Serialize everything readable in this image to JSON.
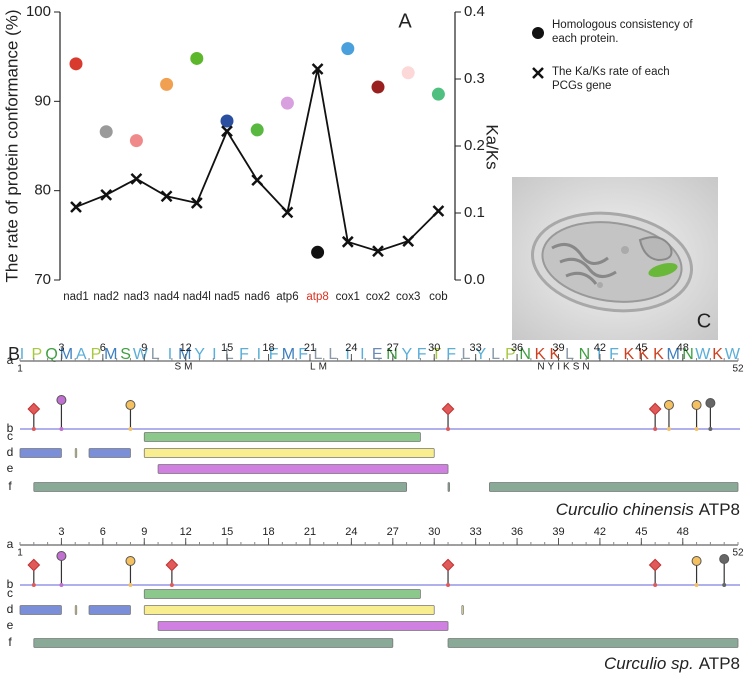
{
  "chart_data": {
    "type": "line",
    "panel_label": "A",
    "ylabel": "The rate of protein conformance (%)",
    "y2label": "Ka/Ks",
    "categories": [
      "nad1",
      "nad2",
      "nad3",
      "nad4",
      "nad4l",
      "nad5",
      "nad6",
      "atp6",
      "atp8",
      "cox1",
      "cox2",
      "cox3",
      "cob"
    ],
    "category_colors": [
      "#222",
      "#222",
      "#222",
      "#222",
      "#222",
      "#222",
      "#222",
      "#222",
      "#e03020",
      "#222",
      "#222",
      "#222",
      "#222"
    ],
    "ylim": [
      70,
      100
    ],
    "yticks": [
      70,
      80,
      90,
      100
    ],
    "y2lim": [
      0,
      0.4
    ],
    "y2ticks": [
      {
        "value": 0,
        "label": "0.0"
      },
      0.1,
      0.2,
      0.3,
      0.4
    ],
    "series": [
      {
        "name": "Homologous consistency of each protein.",
        "type": "scatter",
        "color": "#111",
        "point_colors": [
          "#d93a2e",
          "#9a9a9a",
          "#f08a8a",
          "#f0a050",
          "#5cb82a",
          "#2a4fa0",
          "#58b840",
          "#d9a0e0",
          "#111111",
          "#4aa0dc",
          "#9a2020",
          "#fcd8d8",
          "#50c080"
        ],
        "values": [
          94.2,
          86.6,
          85.6,
          91.9,
          94.8,
          87.8,
          86.8,
          89.8,
          73.1,
          95.9,
          91.6,
          93.2,
          90.8
        ]
      },
      {
        "name": "The Ka/Ks rate of each PCGs gene",
        "type": "line",
        "axis": "y2",
        "color": "#111",
        "marker": "x",
        "values": [
          0.109,
          0.127,
          0.151,
          0.125,
          0.115,
          0.222,
          0.149,
          0.101,
          0.315,
          0.057,
          0.043,
          0.058,
          0.103
        ]
      }
    ]
  },
  "panel_b": {
    "label": "B",
    "sequence": "IPQMAPMSWLIMYILFIFMFLLIIENYFTFLYLPNKKLNIFKKKMNWKW",
    "sequence_lower": [
      "SM",
      "LM",
      "NYIKSN"
    ],
    "residue_colors": {
      "I": "#5aaed8",
      "L": "#8a9aa8",
      "M": "#3d7fc0",
      "F": "#5aaed8",
      "W": "#5aaed8",
      "A": "#5aaed8",
      "P": "#a8c840",
      "Q": "#3da040",
      "S": "#3da040",
      "T": "#a8c840",
      "N": "#3da040",
      "Y": "#5aaed8",
      "E": "#6a8ab8",
      "K": "#d04020"
    },
    "xlim": [
      0,
      52
    ],
    "xticks": [
      3,
      6,
      9,
      12,
      15,
      18,
      21,
      24,
      27,
      30,
      33,
      36,
      39,
      42,
      45,
      48
    ],
    "ends": [
      1,
      52
    ],
    "row_labels": [
      "a",
      "b",
      "c",
      "d",
      "e",
      "f"
    ],
    "tracks": [
      {
        "species": "Curculio chinensis",
        "protein": "ATP8",
        "sites": [
          {
            "position": 1,
            "shape": "diamond",
            "color": "#e05a5a"
          },
          {
            "position": 3,
            "shape": "circle",
            "color": "#c070d0"
          },
          {
            "position": 8,
            "shape": "circle",
            "color": "#f5c060"
          },
          {
            "position": 31,
            "shape": "diamond",
            "color": "#e05a5a"
          },
          {
            "position": 46,
            "shape": "diamond",
            "color": "#e05a5a"
          },
          {
            "position": 47,
            "shape": "circle",
            "color": "#f5c060"
          },
          {
            "position": 49,
            "shape": "circle",
            "color": "#f5c060"
          },
          {
            "position": 50,
            "shape": "circle",
            "color": "#666666"
          }
        ],
        "features": [
          {
            "row": 2,
            "range": [
              9,
              29
            ],
            "color": "#8cc78c"
          },
          {
            "row": 3,
            "range": [
              0,
              3
            ],
            "color": "#7b8fd8"
          },
          {
            "row": 3,
            "range": [
              4,
              4.1
            ],
            "color": "#f8ee90"
          },
          {
            "row": 3,
            "range": [
              5,
              8
            ],
            "color": "#7b8fd8"
          },
          {
            "row": 3,
            "range": [
              9,
              30
            ],
            "color": "#f8ee90"
          },
          {
            "row": 4,
            "range": [
              10,
              31
            ],
            "color": "#d080e0"
          },
          {
            "row": 5,
            "range": [
              1,
              28
            ],
            "color": "#8aaa98"
          },
          {
            "row": 5,
            "range": [
              31,
              31.1
            ],
            "color": "#8aaa98"
          },
          {
            "row": 5,
            "range": [
              34,
              52
            ],
            "color": "#8aaa98"
          }
        ]
      },
      {
        "species": "Curculio sp.",
        "protein": "ATP8",
        "sites": [
          {
            "position": 1,
            "shape": "diamond",
            "color": "#e05a5a"
          },
          {
            "position": 3,
            "shape": "circle",
            "color": "#c070d0"
          },
          {
            "position": 8,
            "shape": "circle",
            "color": "#f5c060"
          },
          {
            "position": 11,
            "shape": "diamond",
            "color": "#e05a5a"
          },
          {
            "position": 31,
            "shape": "diamond",
            "color": "#e05a5a"
          },
          {
            "position": 46,
            "shape": "diamond",
            "color": "#e05a5a"
          },
          {
            "position": 49,
            "shape": "circle",
            "color": "#f5c060"
          },
          {
            "position": 51,
            "shape": "circle",
            "color": "#666666"
          }
        ],
        "features": [
          {
            "row": 2,
            "range": [
              9,
              29
            ],
            "color": "#8cc78c"
          },
          {
            "row": 3,
            "range": [
              0,
              3
            ],
            "color": "#7b8fd8"
          },
          {
            "row": 3,
            "range": [
              4,
              4.1
            ],
            "color": "#f8ee90"
          },
          {
            "row": 3,
            "range": [
              5,
              8
            ],
            "color": "#7b8fd8"
          },
          {
            "row": 3,
            "range": [
              9,
              30
            ],
            "color": "#f8ee90"
          },
          {
            "row": 3,
            "range": [
              32,
              32.1
            ],
            "color": "#f8ee90"
          },
          {
            "row": 4,
            "range": [
              10,
              31
            ],
            "color": "#d080e0"
          },
          {
            "row": 5,
            "range": [
              1,
              27
            ],
            "color": "#8aaa98"
          },
          {
            "row": 5,
            "range": [
              31,
              52
            ],
            "color": "#8aaa98"
          }
        ]
      }
    ]
  },
  "panel_c": {
    "label": "C"
  }
}
